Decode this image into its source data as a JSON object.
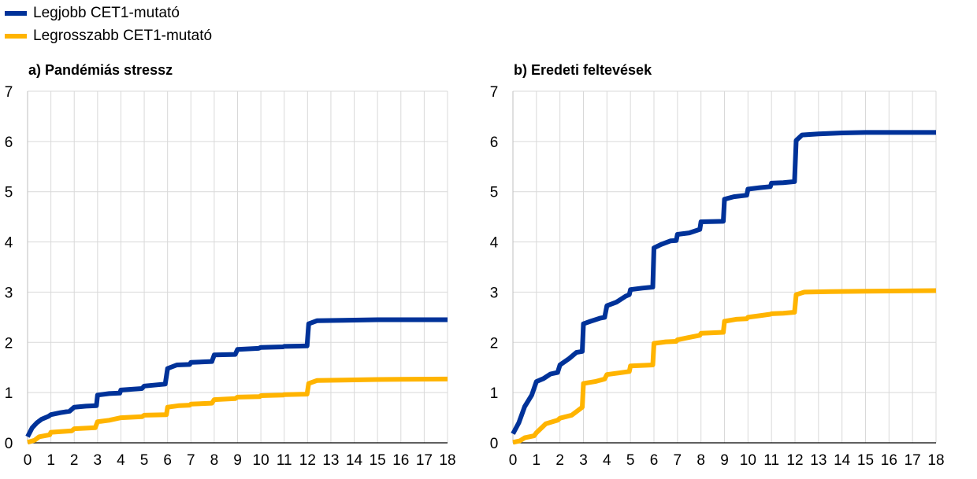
{
  "legend": {
    "items": [
      {
        "label": "Legjobb CET1-mutató",
        "color": "#003299"
      },
      {
        "label": "Legrosszabb CET1-mutató",
        "color": "#FFB400"
      }
    ]
  },
  "colors": {
    "grid": "#d9d9d9",
    "axis": "#000000"
  },
  "chart_data": [
    {
      "type": "line",
      "title": "a) Pandémiás stressz",
      "xlabel": "",
      "ylabel": "",
      "xlim": [
        0,
        18
      ],
      "ylim": [
        0,
        7
      ],
      "x_ticks": [
        0,
        1,
        2,
        3,
        4,
        5,
        6,
        7,
        8,
        9,
        10,
        11,
        12,
        13,
        14,
        15,
        16,
        17,
        18
      ],
      "y_ticks": [
        0,
        1,
        2,
        3,
        4,
        5,
        6,
        7
      ],
      "grid": true,
      "legend_position": "top-left",
      "series": [
        {
          "name": "Legjobb CET1-mutató",
          "color": "#003299",
          "points": [
            [
              0,
              0.12
            ],
            [
              0.2,
              0.3
            ],
            [
              0.4,
              0.4
            ],
            [
              0.6,
              0.47
            ],
            [
              0.9,
              0.53
            ],
            [
              1,
              0.56
            ],
            [
              1.4,
              0.6
            ],
            [
              1.8,
              0.63
            ],
            [
              2,
              0.71
            ],
            [
              2.5,
              0.73
            ],
            [
              2.95,
              0.74
            ],
            [
              3,
              0.95
            ],
            [
              3.5,
              0.98
            ],
            [
              3.95,
              0.99
            ],
            [
              4,
              1.05
            ],
            [
              4.9,
              1.08
            ],
            [
              5,
              1.13
            ],
            [
              5.9,
              1.17
            ],
            [
              6,
              1.48
            ],
            [
              6.4,
              1.55
            ],
            [
              6.95,
              1.56
            ],
            [
              7,
              1.6
            ],
            [
              7.9,
              1.62
            ],
            [
              8,
              1.75
            ],
            [
              8.9,
              1.76
            ],
            [
              9,
              1.86
            ],
            [
              9.9,
              1.88
            ],
            [
              10,
              1.9
            ],
            [
              10.95,
              1.91
            ],
            [
              11,
              1.92
            ],
            [
              11.98,
              1.93
            ],
            [
              12.05,
              2.37
            ],
            [
              12.4,
              2.43
            ],
            [
              13.5,
              2.44
            ],
            [
              15,
              2.45
            ],
            [
              18,
              2.45
            ]
          ]
        },
        {
          "name": "Legrosszabb CET1-mutató",
          "color": "#FFB400",
          "points": [
            [
              0,
              0.01
            ],
            [
              0.3,
              0.05
            ],
            [
              0.5,
              0.12
            ],
            [
              0.95,
              0.16
            ],
            [
              1,
              0.21
            ],
            [
              1.9,
              0.24
            ],
            [
              2,
              0.28
            ],
            [
              2.9,
              0.3
            ],
            [
              3,
              0.42
            ],
            [
              3.5,
              0.45
            ],
            [
              4,
              0.5
            ],
            [
              4.9,
              0.52
            ],
            [
              5,
              0.55
            ],
            [
              5.95,
              0.56
            ],
            [
              6,
              0.71
            ],
            [
              6.5,
              0.74
            ],
            [
              6.95,
              0.75
            ],
            [
              7,
              0.77
            ],
            [
              7.9,
              0.79
            ],
            [
              8,
              0.86
            ],
            [
              8.9,
              0.88
            ],
            [
              9,
              0.91
            ],
            [
              9.95,
              0.92
            ],
            [
              10,
              0.94
            ],
            [
              10.95,
              0.95
            ],
            [
              11,
              0.96
            ],
            [
              11.98,
              0.97
            ],
            [
              12.05,
              1.18
            ],
            [
              12.4,
              1.24
            ],
            [
              13.5,
              1.25
            ],
            [
              15,
              1.26
            ],
            [
              18,
              1.27
            ]
          ]
        }
      ]
    },
    {
      "type": "line",
      "title": "b) Eredeti feltevések",
      "xlabel": "",
      "ylabel": "",
      "xlim": [
        0,
        18
      ],
      "ylim": [
        0,
        7
      ],
      "x_ticks": [
        0,
        1,
        2,
        3,
        4,
        5,
        6,
        7,
        8,
        9,
        10,
        11,
        12,
        13,
        14,
        15,
        16,
        17,
        18
      ],
      "y_ticks": [
        0,
        1,
        2,
        3,
        4,
        5,
        6,
        7
      ],
      "grid": true,
      "series": [
        {
          "name": "Legjobb CET1-mutató",
          "color": "#003299",
          "points": [
            [
              0,
              0.18
            ],
            [
              0.25,
              0.4
            ],
            [
              0.5,
              0.72
            ],
            [
              0.8,
              0.95
            ],
            [
              1,
              1.22
            ],
            [
              1.3,
              1.28
            ],
            [
              1.6,
              1.37
            ],
            [
              1.9,
              1.4
            ],
            [
              2,
              1.55
            ],
            [
              2.4,
              1.68
            ],
            [
              2.7,
              1.8
            ],
            [
              2.95,
              1.82
            ],
            [
              3,
              2.37
            ],
            [
              3.3,
              2.42
            ],
            [
              3.7,
              2.48
            ],
            [
              3.9,
              2.5
            ],
            [
              4,
              2.73
            ],
            [
              4.4,
              2.8
            ],
            [
              4.8,
              2.92
            ],
            [
              4.95,
              2.95
            ],
            [
              5,
              3.05
            ],
            [
              5.5,
              3.08
            ],
            [
              5.95,
              3.1
            ],
            [
              6,
              3.88
            ],
            [
              6.3,
              3.95
            ],
            [
              6.7,
              4.02
            ],
            [
              6.95,
              4.03
            ],
            [
              7,
              4.15
            ],
            [
              7.5,
              4.18
            ],
            [
              7.95,
              4.25
            ],
            [
              8,
              4.4
            ],
            [
              8.95,
              4.41
            ],
            [
              9,
              4.85
            ],
            [
              9.4,
              4.9
            ],
            [
              9.95,
              4.93
            ],
            [
              10,
              5.05
            ],
            [
              10.5,
              5.08
            ],
            [
              10.95,
              5.1
            ],
            [
              11,
              5.17
            ],
            [
              11.5,
              5.18
            ],
            [
              11.98,
              5.2
            ],
            [
              12.05,
              6.02
            ],
            [
              12.3,
              6.13
            ],
            [
              13,
              6.15
            ],
            [
              14,
              6.17
            ],
            [
              15,
              6.18
            ],
            [
              18,
              6.18
            ]
          ]
        },
        {
          "name": "Legrosszabb CET1-mutató",
          "color": "#FFB400",
          "points": [
            [
              0,
              0.01
            ],
            [
              0.3,
              0.04
            ],
            [
              0.5,
              0.1
            ],
            [
              0.9,
              0.14
            ],
            [
              1,
              0.2
            ],
            [
              1.4,
              0.38
            ],
            [
              1.9,
              0.45
            ],
            [
              2,
              0.49
            ],
            [
              2.5,
              0.55
            ],
            [
              2.95,
              0.71
            ],
            [
              3,
              1.18
            ],
            [
              3.5,
              1.22
            ],
            [
              3.9,
              1.27
            ],
            [
              4,
              1.36
            ],
            [
              4.5,
              1.39
            ],
            [
              4.95,
              1.42
            ],
            [
              5,
              1.53
            ],
            [
              5.95,
              1.55
            ],
            [
              6,
              1.98
            ],
            [
              6.5,
              2.01
            ],
            [
              6.95,
              2.02
            ],
            [
              7,
              2.05
            ],
            [
              7.5,
              2.1
            ],
            [
              7.95,
              2.14
            ],
            [
              8,
              2.18
            ],
            [
              8.95,
              2.2
            ],
            [
              9,
              2.42
            ],
            [
              9.5,
              2.46
            ],
            [
              9.95,
              2.47
            ],
            [
              10,
              2.5
            ],
            [
              10.5,
              2.53
            ],
            [
              10.95,
              2.56
            ],
            [
              11,
              2.57
            ],
            [
              11.5,
              2.58
            ],
            [
              11.98,
              2.6
            ],
            [
              12.05,
              2.95
            ],
            [
              12.4,
              3.0
            ],
            [
              13.5,
              3.01
            ],
            [
              15,
              3.02
            ],
            [
              18,
              3.03
            ]
          ]
        }
      ]
    }
  ]
}
